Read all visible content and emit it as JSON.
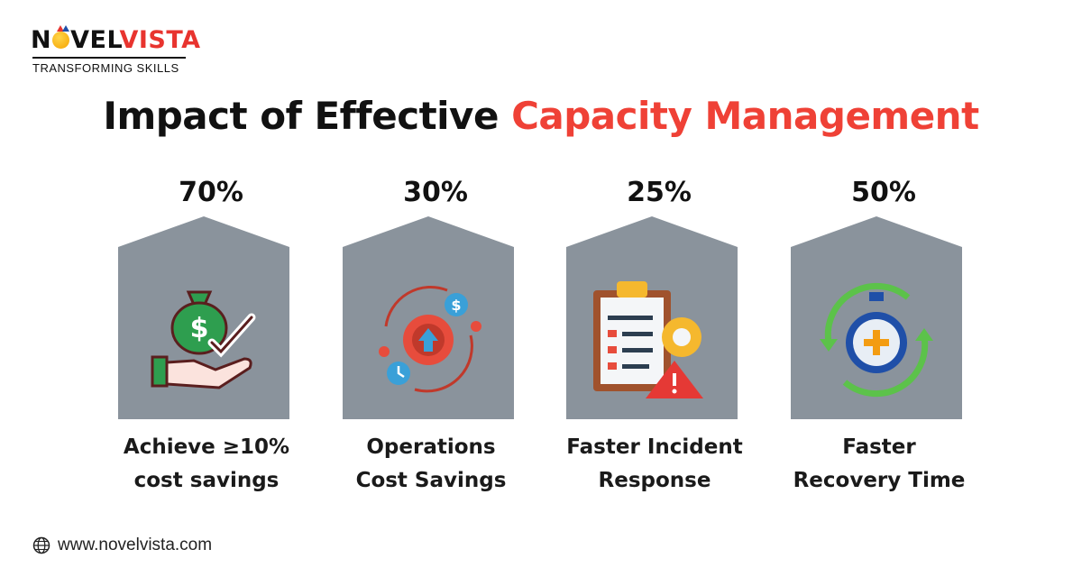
{
  "logo": {
    "brand_part1": "N",
    "brand_part2": "VEL",
    "brand_part3": "VISTA",
    "tagline": "TRANSFORMING SKILLS"
  },
  "title": {
    "dark": "Impact of Effective",
    "red": "Capacity Management"
  },
  "colors": {
    "accent_red": "#ef4136",
    "card_gray": "#8a939c",
    "text_dark": "#111111"
  },
  "cards": [
    {
      "percent": "70%",
      "label_line1": "Achieve ≥10%",
      "label_line2": "cost savings",
      "icon": "money-bag-hand-icon"
    },
    {
      "percent": "30%",
      "label_line1": "Operations",
      "label_line2": "Cost Savings",
      "icon": "gear-cycle-dollar-icon"
    },
    {
      "percent": "25%",
      "label_line1": "Faster Incident",
      "label_line2": "Response",
      "icon": "clipboard-warning-icon"
    },
    {
      "percent": "50%",
      "label_line1": "Faster",
      "label_line2": "Recovery Time",
      "icon": "stopwatch-cycle-icon"
    }
  ],
  "footer": {
    "website": "www.novelvista.com",
    "icon": "globe-icon"
  }
}
